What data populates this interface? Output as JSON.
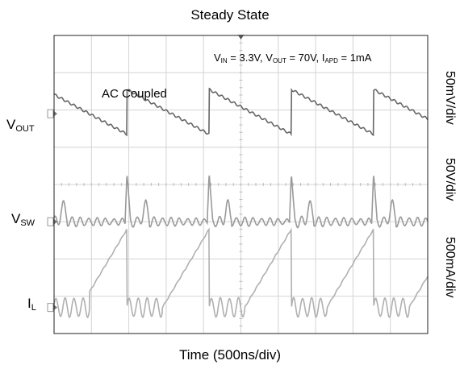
{
  "chart_data": {
    "type": "line",
    "title": "Steady State",
    "xlabel": "Time (500ns/div)",
    "x_divisions": 10,
    "y_divisions": 8,
    "conditions": {
      "vin": {
        "sym": "V",
        "sub": "IN",
        "val": " = 3.3V, "
      },
      "vout": {
        "sym": "V",
        "sub": "OUT",
        "val": " = 70V, "
      },
      "iapd": {
        "sym": "I",
        "sub": "APD",
        "val": " = 1mA"
      }
    },
    "annotation": "AC Coupled",
    "switching_period_div": 2.2,
    "first_edge_div": 1.95,
    "channels": [
      {
        "id": "vout",
        "sym": "V",
        "sub": "OUT",
        "scale": "50mV/div",
        "color": "#666666",
        "zero_div": 5.9,
        "ramp_start_div": 0.65,
        "ramp_end_div": -0.55
      },
      {
        "id": "vsw",
        "sym": "V",
        "sub": "SW",
        "scale": "50V/div",
        "color": "#9a9a9a",
        "zero_div": 3.0,
        "spike_div": 1.3,
        "ringing_div": 0.15
      },
      {
        "id": "il",
        "sym": "I",
        "sub": "L",
        "scale": "500mA/div",
        "color": "#b0b0b0",
        "zero_div": 0.7,
        "ramp_start_div": 0.7,
        "ramp_peak_div": 2.8
      }
    ]
  }
}
